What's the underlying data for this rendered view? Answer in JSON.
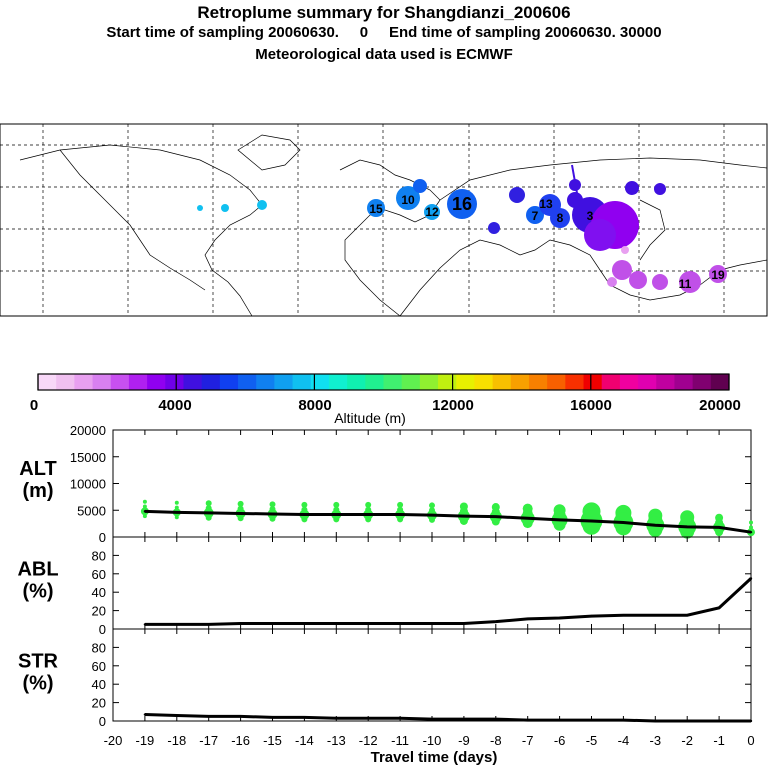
{
  "header": {
    "title": "Retroplume summary for Shangdianzi_200606",
    "sampling": "Start time of sampling 20060630.     0     End time of sampling 20060630. 30000",
    "met": "Meteorological data used is ECMWF"
  },
  "colorbar": {
    "label": "Altitude (m)",
    "tick_labels": [
      "0",
      "4000",
      "8000",
      "12000",
      "16000",
      "20000"
    ],
    "colors": [
      "#f8d8f8",
      "#f0c0f0",
      "#e8a0f0",
      "#d880f0",
      "#c850f0",
      "#b020f0",
      "#9000f0",
      "#7000e8",
      "#4010e0",
      "#2020e0",
      "#1040f0",
      "#1060f0",
      "#1080f0",
      "#10a0f0",
      "#10c0f0",
      "#10e0f0",
      "#10f0d0",
      "#10f0b0",
      "#20f090",
      "#40f070",
      "#60f050",
      "#90f030",
      "#c0f010",
      "#e8f000",
      "#f8e000",
      "#f8c000",
      "#f8a000",
      "#f88000",
      "#f86000",
      "#f83000",
      "#f00000",
      "#f00070",
      "#f000a0",
      "#e000b0",
      "#c000a0",
      "#a00090",
      "#800070",
      "#600050"
    ]
  },
  "map": {
    "clusters": [
      {
        "label": "16",
        "color": "#1060f0"
      },
      {
        "label": "10",
        "color": "#1080f0"
      },
      {
        "label": "3",
        "color": "#8000f0"
      },
      {
        "label": "13",
        "color": "#2040f0"
      },
      {
        "label": "19",
        "color": "#c050e8"
      },
      {
        "label": "11",
        "color": "#c050e8"
      },
      {
        "label": "7",
        "color": "#1060f0"
      },
      {
        "label": "8",
        "color": "#1060f0"
      },
      {
        "label": "12",
        "color": "#10c0f0"
      },
      {
        "label": "15",
        "color": "#10c0f0"
      }
    ]
  },
  "chart_data": [
    {
      "type": "line",
      "panel": "ALT",
      "ylabel": "ALT\n(m)",
      "ylabel_lines": [
        "ALT",
        "(m)"
      ],
      "ylim": [
        0,
        20000
      ],
      "yticks": [
        "0",
        "5000",
        "10000",
        "15000",
        "20000"
      ],
      "x": [
        -19,
        -18,
        -17,
        -16,
        -15,
        -14,
        -13,
        -12,
        -11,
        -10,
        -9,
        -8,
        -7,
        -6,
        -5,
        -4,
        -3,
        -2,
        -1,
        0
      ],
      "values": [
        4800,
        4600,
        4500,
        4400,
        4300,
        4200,
        4200,
        4200,
        4200,
        4100,
        3900,
        3800,
        3500,
        3200,
        3000,
        2700,
        2200,
        1900,
        1800,
        900
      ],
      "dot_color": "#33ee44"
    },
    {
      "type": "line",
      "panel": "ABL",
      "ylabel_lines": [
        "ABL",
        "(%)"
      ],
      "ylim": [
        0,
        100
      ],
      "yticks": [
        "0",
        "20",
        "40",
        "60",
        "80"
      ],
      "x": [
        -19,
        -18,
        -17,
        -16,
        -15,
        -14,
        -13,
        -12,
        -11,
        -10,
        -9,
        -8,
        -7,
        -6,
        -5,
        -4,
        -3,
        -2,
        -1,
        0
      ],
      "values": [
        5,
        5,
        5,
        6,
        6,
        6,
        6,
        6,
        6,
        6,
        6,
        8,
        11,
        12,
        14,
        15,
        15,
        15,
        23,
        55
      ]
    },
    {
      "type": "line",
      "panel": "STR",
      "ylabel_lines": [
        "STR",
        "(%)"
      ],
      "ylim": [
        0,
        100
      ],
      "yticks": [
        "0",
        "20",
        "40",
        "60",
        "80"
      ],
      "x": [
        -19,
        -18,
        -17,
        -16,
        -15,
        -14,
        -13,
        -12,
        -11,
        -10,
        -9,
        -8,
        -7,
        -6,
        -5,
        -4,
        -3,
        -2,
        -1,
        0
      ],
      "values": [
        7,
        6,
        5,
        5,
        4,
        4,
        3,
        3,
        3,
        2,
        2,
        2,
        1,
        1,
        1,
        1,
        0,
        0,
        0,
        0
      ]
    }
  ],
  "xaxis": {
    "title": "Travel time (days)",
    "tick_labels": [
      "-20",
      "-19",
      "-18",
      "-17",
      "-16",
      "-15",
      "-14",
      "-13",
      "-12",
      "-11",
      "-10",
      "-9",
      "-8",
      "-7",
      "-6",
      "-5",
      "-4",
      "-3",
      "-2",
      "-1",
      "0"
    ]
  }
}
